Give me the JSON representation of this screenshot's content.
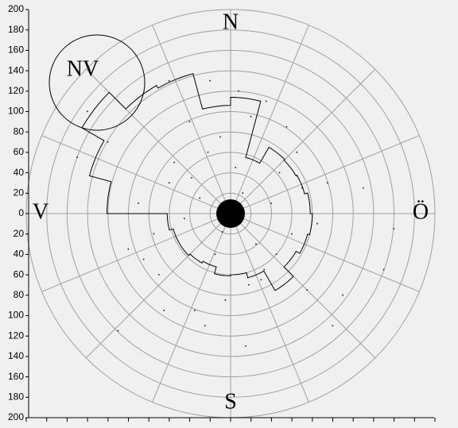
{
  "chart_data": {
    "type": "polar",
    "ylim": [
      -200,
      200
    ],
    "yticks": [
      {
        "value": -200,
        "label": "200"
      },
      {
        "value": -180,
        "label": "180"
      },
      {
        "value": -160,
        "label": "160"
      },
      {
        "value": -140,
        "label": "140"
      },
      {
        "value": -120,
        "label": "120"
      },
      {
        "value": -100,
        "label": "100"
      },
      {
        "value": -80,
        "label": "80"
      },
      {
        "value": -60,
        "label": "60"
      },
      {
        "value": -40,
        "label": "40"
      },
      {
        "value": -20,
        "label": "20"
      },
      0,
      20,
      40,
      60,
      80,
      100,
      120,
      140,
      160,
      180,
      200
    ],
    "xlim": [
      -200,
      200
    ],
    "xticks": [
      -200,
      -180,
      -160,
      -140,
      -120,
      -100,
      -80,
      -60,
      -40,
      -20,
      0,
      20,
      40,
      60,
      80,
      100,
      120,
      140,
      160,
      180,
      200
    ],
    "rings": [
      20,
      40,
      60,
      80,
      100,
      120,
      140,
      160,
      180,
      200
    ],
    "spokes": [
      0,
      22.5,
      45,
      67.5,
      90,
      112.5,
      135,
      157.5,
      180,
      202.5,
      225,
      247.5,
      270,
      292.5,
      315,
      337.5
    ],
    "directions": [
      {
        "label": "N",
        "angle": 0
      },
      {
        "label": "Ö",
        "angle": 90
      },
      {
        "label": "S",
        "angle": 180
      },
      {
        "label": "V",
        "angle": 270
      }
    ],
    "annotation": "NV",
    "outline": {
      "color": "#000000",
      "values": [
        114,
        57,
        75,
        74,
        75,
        78,
        80,
        78,
        74,
        87,
        65,
        60,
        61,
        54,
        56,
        58,
        58,
        62,
        121,
        143,
        168,
        145,
        142,
        106
      ]
    },
    "center_radius": 14,
    "points": {
      "color": "#0000ff",
      "x": [
        12,
        -8,
        25,
        -30,
        40,
        -45,
        5,
        -15,
        60,
        -60,
        33,
        -22,
        70,
        -75,
        18,
        -38,
        48,
        -10,
        85,
        -90,
        -55,
        30,
        -5,
        95,
        -100,
        110,
        -120,
        20,
        -140,
        150,
        -35,
        65,
        -70,
        8,
        -25,
        55,
        -85,
        100,
        -60,
        45,
        130,
        -110,
        -150,
        160,
        -20,
        75,
        -40,
        15,
        35,
        -65
      ],
      "y": [
        20,
        -18,
        -30,
        15,
        10,
        -5,
        45,
        -40,
        -20,
        30,
        -55,
        60,
        25,
        -20,
        -70,
        35,
        40,
        75,
        -10,
        10,
        50,
        -65,
        -85,
        30,
        -35,
        -80,
        70,
        95,
        100,
        -55,
        -95,
        60,
        -60,
        120,
        -110,
        85,
        -45,
        -110,
        130,
        -40,
        25,
        -115,
        55,
        -15,
        130,
        -75,
        90,
        -130,
        110,
        -95
      ]
    }
  }
}
